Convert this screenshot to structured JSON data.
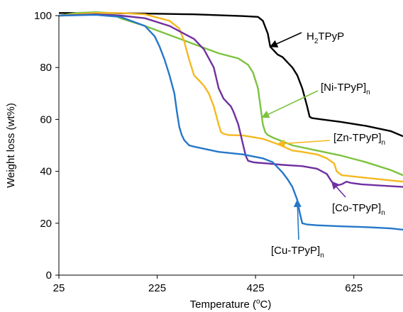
{
  "chart_data": {
    "type": "line",
    "xlabel": "Temperature (oC)",
    "xlabel_base": "Temperature (",
    "xlabel_sup": "o",
    "xlabel_end": "C)",
    "ylabel": "Weight loss (wt%)",
    "xlim": [
      25,
      725
    ],
    "ylim": [
      0,
      100
    ],
    "xticks": [
      25,
      225,
      425,
      625
    ],
    "yticks": [
      0,
      20,
      40,
      60,
      80,
      100
    ],
    "grid": false,
    "series": [
      {
        "name": "H2TPyP",
        "color": "#000000",
        "x": [
          25,
          100,
          200,
          300,
          400,
          430,
          440,
          450,
          455,
          470,
          480,
          490,
          500,
          510,
          520,
          530,
          535,
          540,
          560,
          600,
          650,
          700,
          725
        ],
        "y": [
          101,
          101,
          100.8,
          100.5,
          99.8,
          99.5,
          98,
          93,
          88,
          85,
          84,
          82,
          80,
          77,
          72,
          65,
          61,
          60.5,
          60,
          59,
          57.5,
          55.5,
          53.5
        ]
      },
      {
        "name": "[Ni-TPyP]n",
        "color": "#7CC33F",
        "x": [
          25,
          60,
          100,
          130,
          150,
          200,
          250,
          300,
          350,
          390,
          410,
          420,
          430,
          435,
          440,
          445,
          450,
          460,
          480,
          500,
          550,
          600,
          650,
          700,
          725
        ],
        "y": [
          100,
          101,
          101.3,
          101,
          99,
          96,
          92.5,
          89,
          85.5,
          83.5,
          81,
          78,
          72,
          65,
          58,
          55,
          54,
          53,
          51.5,
          50,
          48,
          46,
          43.5,
          40.5,
          38.5
        ]
      },
      {
        "name": "[Zn-TPyP]n",
        "color": "#F5B820",
        "x": [
          25,
          100,
          150,
          200,
          250,
          270,
          280,
          290,
          300,
          310,
          320,
          330,
          340,
          350,
          355,
          360,
          370,
          400,
          440,
          470,
          500,
          520,
          550,
          570,
          585,
          590,
          600,
          650,
          700,
          725
        ],
        "y": [
          100,
          101,
          101,
          100.5,
          98,
          95,
          90,
          83,
          77,
          75,
          73,
          70,
          65,
          58,
          55,
          54.5,
          54,
          53.8,
          52.5,
          50.5,
          48,
          47.5,
          46.5,
          45,
          43,
          40,
          38.5,
          37.5,
          36.5,
          36
        ]
      },
      {
        "name": "[Co-TPyP]n",
        "color": "#7030A0",
        "x": [
          25,
          100,
          150,
          200,
          250,
          300,
          320,
          340,
          350,
          360,
          370,
          375,
          380,
          390,
          400,
          405,
          410,
          415,
          420,
          430,
          450,
          480,
          520,
          550,
          570,
          580,
          590,
          600,
          610,
          620,
          640,
          680,
          725
        ],
        "y": [
          100,
          100.5,
          100,
          99,
          96,
          91,
          87,
          80,
          72,
          68,
          66,
          65,
          63,
          58,
          50,
          46,
          44,
          43.8,
          43.5,
          43.3,
          43,
          42.5,
          42,
          41,
          39,
          36,
          34.5,
          35,
          36,
          35.5,
          35,
          34.5,
          34
        ]
      },
      {
        "name": "[Cu-TPyP]n",
        "color": "#2577C8",
        "x": [
          25,
          100,
          150,
          200,
          220,
          230,
          240,
          250,
          260,
          265,
          270,
          275,
          280,
          290,
          300,
          350,
          400,
          440,
          460,
          470,
          480,
          490,
          500,
          510,
          515,
          520,
          530,
          550,
          600,
          650,
          700,
          725
        ],
        "y": [
          100,
          100.3,
          99.5,
          96,
          92,
          88,
          83,
          77,
          70,
          63,
          57,
          54,
          52,
          50,
          49.5,
          47.5,
          46.5,
          45,
          43.5,
          41.5,
          39.5,
          37,
          34,
          29,
          24,
          20,
          19.5,
          19.2,
          18.8,
          18.5,
          18,
          17.5
        ]
      }
    ],
    "annotations": [
      {
        "series": "H2TPyP",
        "parts": [
          [
            "H",
            "normal"
          ],
          [
            "2",
            "sub"
          ],
          [
            "TPyP",
            "normal"
          ]
        ]
      },
      {
        "series": "[Ni-TPyP]n",
        "parts": [
          [
            "[Ni-TPyP]",
            "normal"
          ],
          [
            "n",
            "sub"
          ]
        ]
      },
      {
        "series": "[Zn-TPyP]n",
        "parts": [
          [
            "[Zn-TPyP]",
            "normal"
          ],
          [
            "n",
            "sub"
          ]
        ]
      },
      {
        "series": "[Co-TPyP]n",
        "parts": [
          [
            "[Co-TPyP]",
            "normal"
          ],
          [
            "n",
            "sub"
          ]
        ]
      },
      {
        "series": "[Cu-TPyP]n",
        "parts": [
          [
            "[Cu-TPyP]",
            "normal"
          ],
          [
            "n",
            "sub"
          ]
        ]
      }
    ]
  }
}
